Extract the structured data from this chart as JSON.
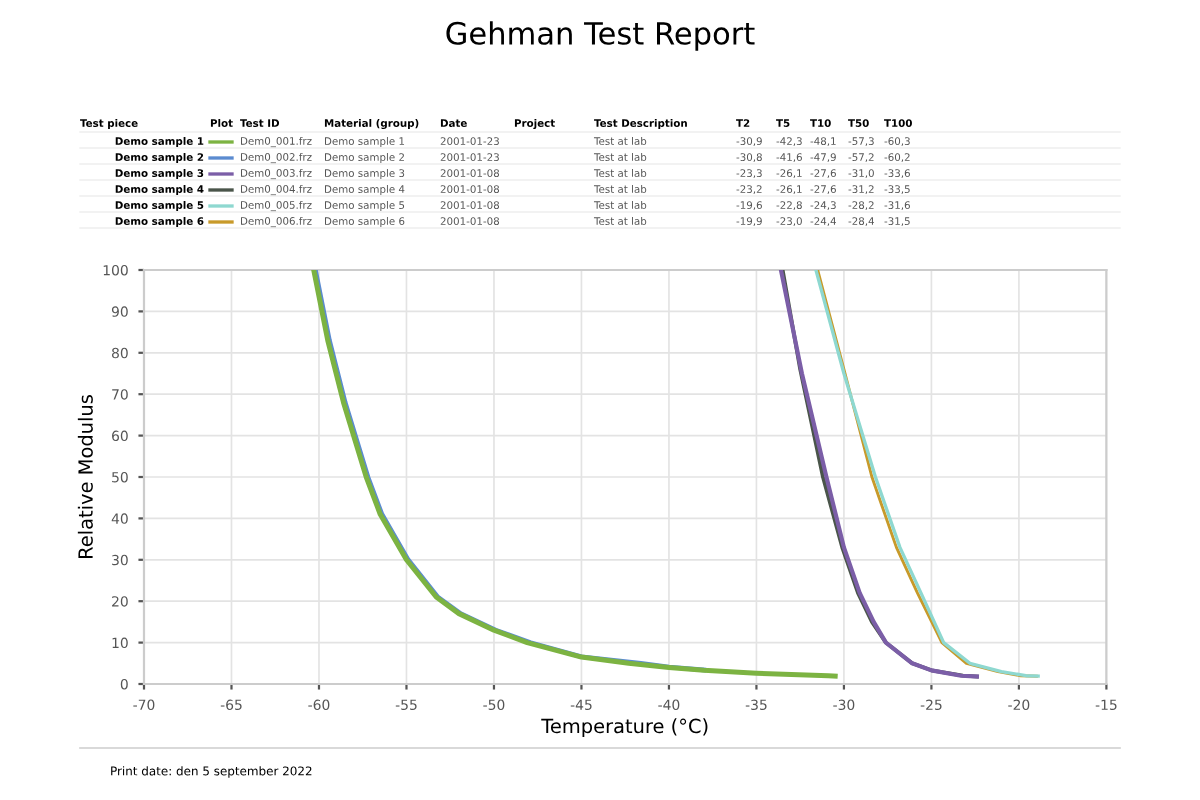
{
  "chart_data": {
    "type": "line",
    "title": "Gehman Test Report",
    "xlabel": "Temperature (°C)",
    "ylabel": "Relative Modulus",
    "xlim": [
      -70,
      -15
    ],
    "xticks": [
      -70,
      -65,
      -60,
      -55,
      -50,
      -45,
      -40,
      -35,
      -30,
      -25,
      -20,
      -15
    ],
    "ylim": [
      0,
      100
    ],
    "yticks": [
      0,
      10,
      20,
      30,
      40,
      50,
      60,
      70,
      80,
      90,
      100
    ],
    "grid": true,
    "legend": "top",
    "marker": "none",
    "line_style": "solid",
    "series": [
      {
        "name": "Demo sample 1",
        "color": "#7cb342",
        "x": [
          -60.3,
          -59.5,
          -58.6,
          -57.3,
          -56.5,
          -55,
          -53.3,
          -52,
          -50,
          -48.1,
          -45,
          -42.3,
          -40,
          -38,
          -35,
          -30.9,
          -30.5
        ],
        "values": [
          100,
          83,
          68,
          50,
          41,
          30,
          21,
          17,
          13,
          10,
          6.5,
          5,
          4,
          3.3,
          2.6,
          2,
          1.9
        ]
      },
      {
        "name": "Demo sample 2",
        "color": "#5b8bd0",
        "x": [
          -60.2,
          -59.4,
          -58.5,
          -57.2,
          -56.4,
          -54.9,
          -53.2,
          -51.9,
          -49.9,
          -47.9,
          -45,
          -41.6,
          -40,
          -38
        ],
        "values": [
          100,
          83,
          68,
          50,
          41,
          30,
          21,
          17,
          13,
          10,
          6.6,
          5,
          4.1,
          3.4
        ]
      },
      {
        "name": "Demo sample 3",
        "color": "#7b5ea7",
        "x": [
          -33.6,
          -32.4,
          -31.0,
          -30.0,
          -29.1,
          -28.3,
          -27.6,
          -26.1,
          -25,
          -23.3,
          -22.4
        ],
        "values": [
          100,
          75,
          50,
          33,
          22,
          15,
          10,
          5,
          3.3,
          2,
          1.8
        ]
      },
      {
        "name": "Demo sample 4",
        "color": "#4a554a",
        "x": [
          -33.5,
          -32.5,
          -31.2,
          -30.1,
          -29.2,
          -28.4,
          -27.6,
          -26.1,
          -25,
          -23.2,
          -22.4
        ],
        "values": [
          100,
          76,
          50,
          33,
          22,
          15,
          10,
          5,
          3.3,
          2,
          1.8
        ]
      },
      {
        "name": "Demo sample 5",
        "color": "#8ed8d0",
        "x": [
          -31.6,
          -30,
          -28.2,
          -26.8,
          -25.6,
          -24.3,
          -22.8,
          -21,
          -19.6,
          -18.9
        ],
        "values": [
          100,
          75,
          50,
          33,
          22,
          10,
          5,
          3,
          2,
          1.9
        ]
      },
      {
        "name": "Demo sample 6",
        "color": "#c89a2a",
        "x": [
          -31.5,
          -30,
          -28.4,
          -27,
          -25.8,
          -24.4,
          -23.0,
          -21.2,
          -19.9,
          -19
        ],
        "values": [
          100,
          76,
          50,
          33,
          22,
          10,
          5,
          3,
          2,
          1.9
        ]
      }
    ],
    "annotations": [
      "Test piece",
      "Plot",
      "Test ID",
      "Material (group)",
      "Date",
      "Project",
      "Test Description",
      "T2",
      "T5",
      "T10",
      "T50",
      "T100",
      "Dem0_001.frz",
      "Demo sample 1",
      "2001-01-23",
      "Test at lab",
      "-30,9",
      "-42,3",
      "-48,1",
      "-57,3",
      "-60,3",
      "Dem0_002.frz",
      "Demo sample 2",
      "2001-01-23",
      "Test at lab",
      "-30,8",
      "-41,6",
      "-47,9",
      "-57,2",
      "-60,2",
      "Dem0_003.frz",
      "Demo sample 3",
      "2001-01-08",
      "Test at lab",
      "-23,3",
      "-26,1",
      "-27,6",
      "-31,0",
      "-33,6",
      "Dem0_004.frz",
      "Demo sample 4",
      "2001-01-08",
      "Test at lab",
      "-23,2",
      "-26,1",
      "-27,6",
      "-31,2",
      "-33,5",
      "Dem0_005.frz",
      "Demo sample 5",
      "2001-01-08",
      "Test at lab",
      "-19,6",
      "-22,8",
      "-24,3",
      "-28,2",
      "-31,6",
      "Dem0_006.frz",
      "Demo sample 6",
      "2001-01-08",
      "Test at lab",
      "-19,9",
      "-23,0",
      "-24,4",
      "-28,4",
      "-31,5",
      "Print date: den 5 september 2022"
    ]
  }
}
